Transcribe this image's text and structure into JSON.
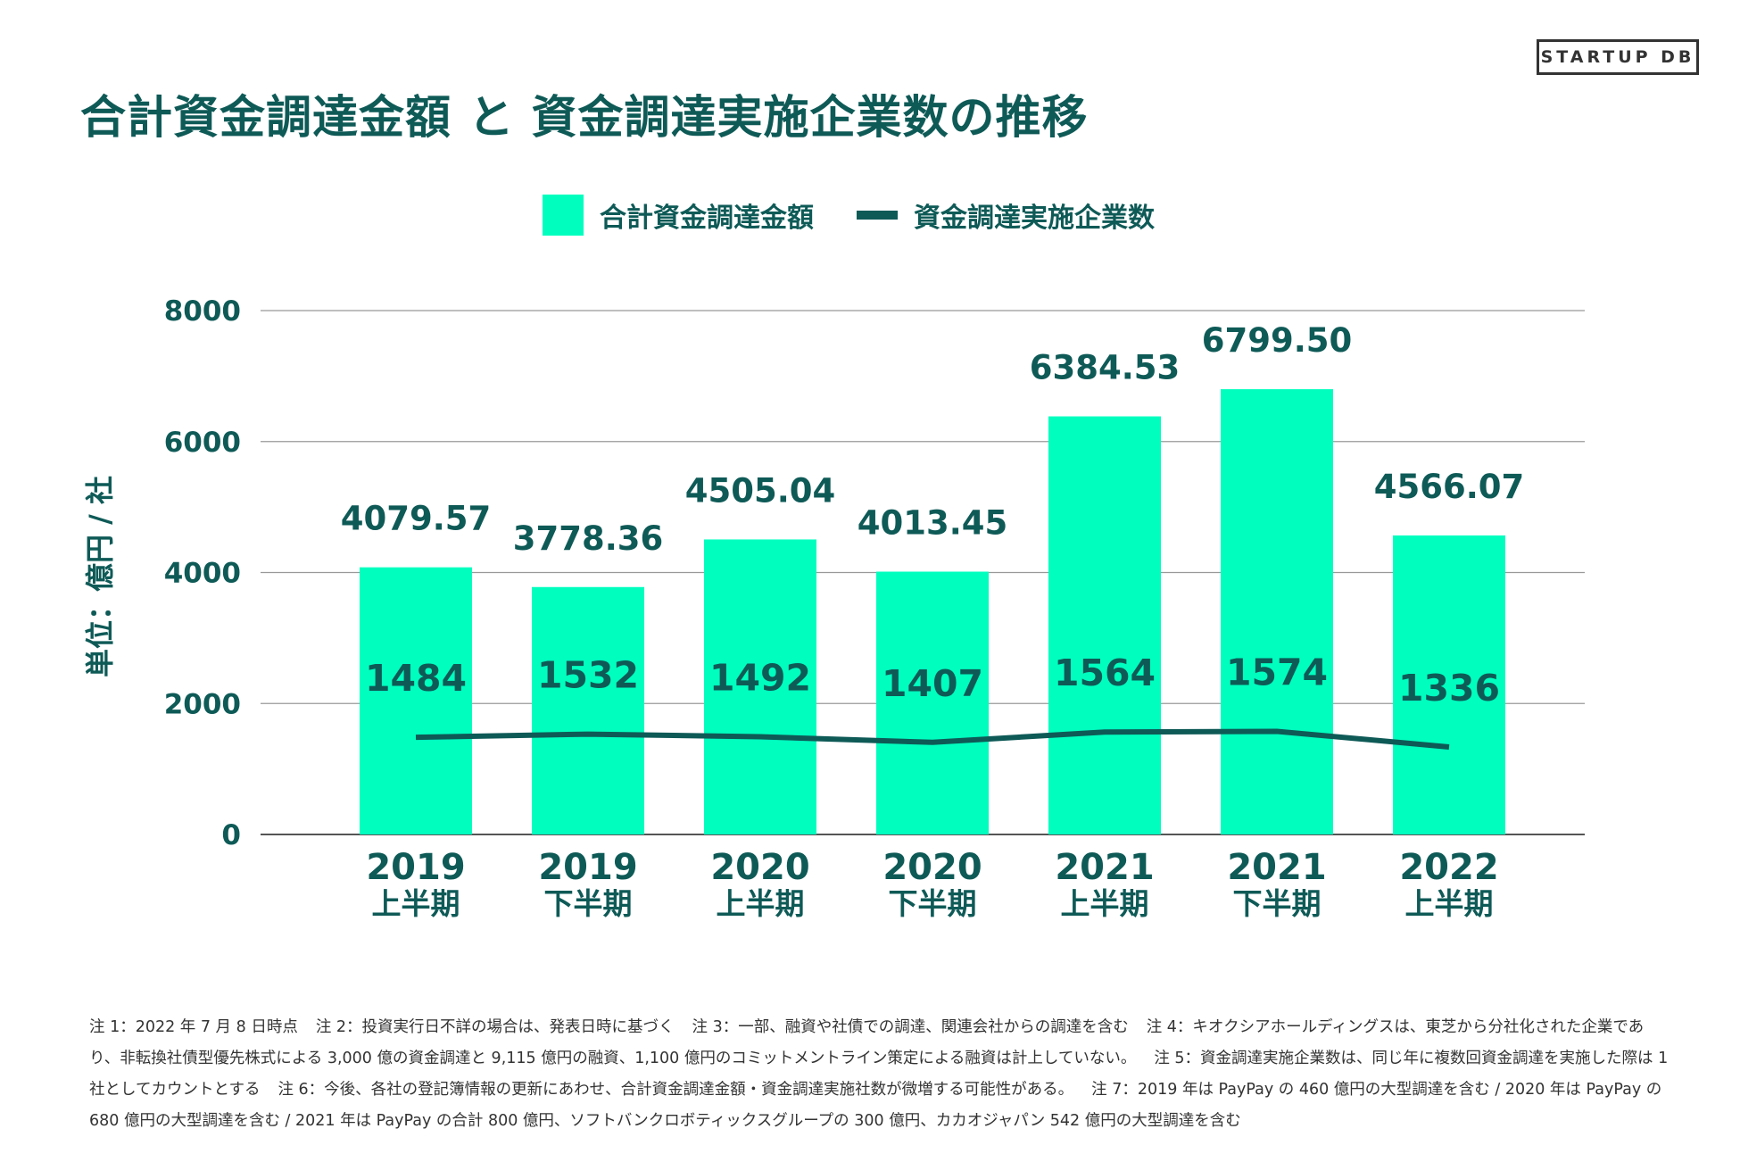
{
  "logo": "STARTUP DB",
  "title": "合計資金調達金額 と 資金調達実施企業数の推移",
  "colors": {
    "bar": "#00ffbf",
    "line": "#0e5a57",
    "text": "#0e5a57",
    "grid": "#999999"
  },
  "chart_data": {
    "type": "bar",
    "ylabel": "単位：億円 / 社",
    "ylim": [
      0,
      8000
    ],
    "yticks": [
      "0",
      "2000",
      "4000",
      "6000",
      "8000"
    ],
    "categories": [
      {
        "year": "2019",
        "half": "上半期"
      },
      {
        "year": "2019",
        "half": "下半期"
      },
      {
        "year": "2020",
        "half": "上半期"
      },
      {
        "year": "2020",
        "half": "下半期"
      },
      {
        "year": "2021",
        "half": "上半期"
      },
      {
        "year": "2021",
        "half": "下半期"
      },
      {
        "year": "2022",
        "half": "上半期"
      }
    ],
    "series": [
      {
        "name": "合計資金調達金額",
        "type": "bar",
        "values": [
          4079.57,
          3778.36,
          4505.04,
          4013.45,
          6384.53,
          6799.5,
          4566.07
        ],
        "labels": [
          "4079.57",
          "3778.36",
          "4505.04",
          "4013.45",
          "6384.53",
          "6799.50",
          "4566.07"
        ]
      },
      {
        "name": "資金調達実施企業数",
        "type": "line",
        "values": [
          1484,
          1532,
          1492,
          1407,
          1564,
          1574,
          1336
        ],
        "labels": [
          "1484",
          "1532",
          "1492",
          "1407",
          "1564",
          "1574",
          "1336"
        ]
      }
    ],
    "grid": true,
    "legend": "top-center"
  },
  "notes": [
    "注 1：2022 年 7 月 8 日時点",
    "注 2：投資実行日不詳の場合は、発表日時に基づく",
    "注 3：一部、融資や社債での調達、関連会社からの調達を含む",
    "注 4：キオクシアホールディングスは、東芝から分社化された企業であり、非転換社債型優先株式による 3,000 億の資金調達と 9,115 億円の融資、1,100 億円のコミットメントライン策定による融資は計上していない。",
    "注 5：資金調達実施企業数は、同じ年に複数回資金調達を実施した際は 1 社としてカウントとする",
    "注 6：今後、各社の登記簿情報の更新にあわせ、合計資金調達金額・資金調達実施社数が微増する可能性がある。",
    "注 7：2019 年は PayPay の 460 億円の大型調達を含む / 2020 年は PayPay の 680 億円の大型調達を含む / 2021 年は PayPay の合計 800 億円、ソフトバンクロボティックスグループの 300 億円、カカオジャパン 542 億円の大型調達を含む"
  ]
}
